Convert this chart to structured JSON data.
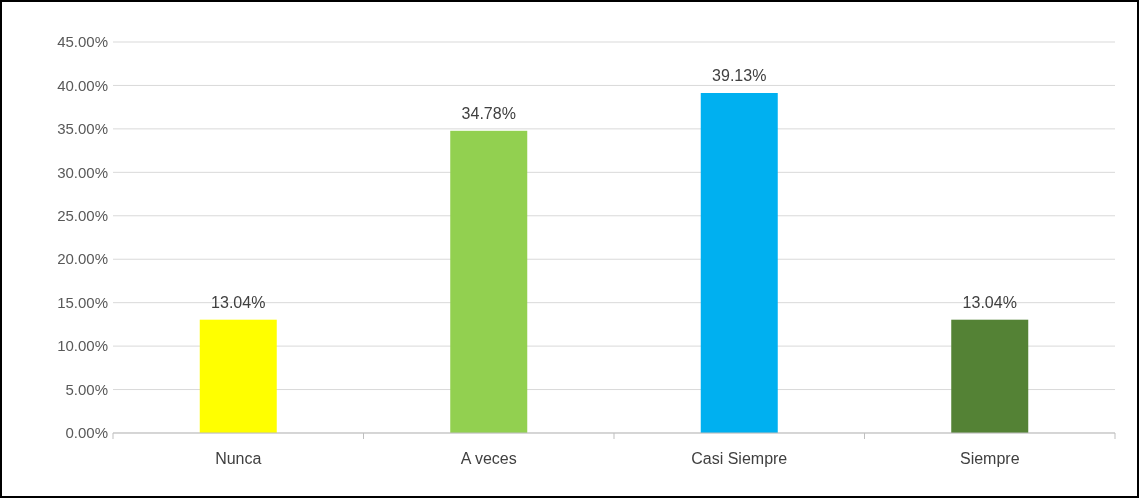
{
  "chart_data": {
    "type": "bar",
    "categories": [
      "Nunca",
      "A veces",
      "Casi Siempre",
      "Siempre"
    ],
    "values": [
      13.04,
      34.78,
      39.13,
      13.04
    ],
    "colors": [
      "#ffff00",
      "#92d050",
      "#00b0f0",
      "#548235"
    ],
    "value_labels": [
      "13.04%",
      "34.78%",
      "39.13%",
      "13.04%"
    ],
    "ylim": [
      0,
      45
    ],
    "yticks": [
      {
        "value": 0,
        "label": "0.00%"
      },
      {
        "value": 5,
        "label": "5.00%"
      },
      {
        "value": 10,
        "label": "10.00%"
      },
      {
        "value": 15,
        "label": "15.00%"
      },
      {
        "value": 20,
        "label": "20.00%"
      },
      {
        "value": 25,
        "label": "25.00%"
      },
      {
        "value": 30,
        "label": "30.00%"
      },
      {
        "value": 35,
        "label": "35.00%"
      },
      {
        "value": 40,
        "label": "40.00%"
      },
      {
        "value": 45,
        "label": "45.00%"
      }
    ],
    "grid": "y"
  }
}
